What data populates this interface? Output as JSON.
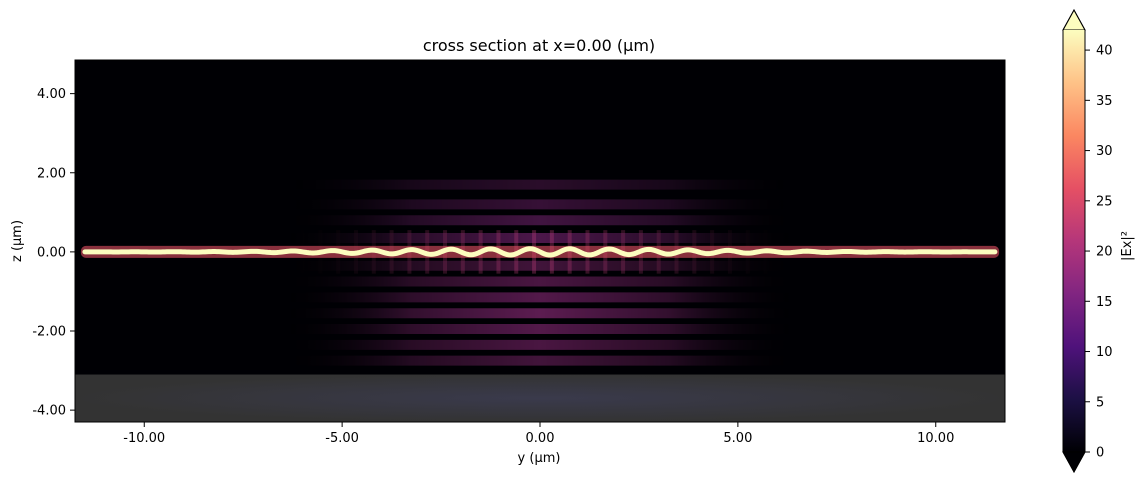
{
  "chart_data": {
    "type": "heatmap",
    "title": "cross section at x=0.00 (µm)",
    "xlabel": "y (µm)",
    "ylabel": "z (µm)",
    "xlim": [
      -11.75,
      11.75
    ],
    "ylim": [
      -4.3,
      4.85
    ],
    "x_ticks": [
      -10.0,
      -5.0,
      0.0,
      5.0,
      10.0
    ],
    "x_tick_labels": [
      "-10.00",
      "-5.00",
      "0.00",
      "5.00",
      "10.00"
    ],
    "y_ticks": [
      -4.0,
      -2.0,
      0.0,
      2.0,
      4.0
    ],
    "y_tick_labels": [
      "-4.00",
      "-2.00",
      "0.00",
      "2.00",
      "4.00"
    ],
    "colorbar": {
      "label": "|Ex|²",
      "vmin": 0,
      "vmax": 42,
      "ticks": [
        0,
        5,
        10,
        15,
        20,
        25,
        30,
        35,
        40
      ],
      "tick_labels": [
        "0",
        "5",
        "10",
        "15",
        "20",
        "25",
        "30",
        "35",
        "40"
      ],
      "extend": "both",
      "colormap": "magma"
    },
    "features": {
      "waveguide": {
        "z_center": 0.0,
        "y_range": [
          -11.5,
          11.5
        ],
        "value": 42
      },
      "beam_region": {
        "y_range": [
          -6.5,
          6.5
        ],
        "z_range": [
          -3.0,
          2.2
        ],
        "peak_value": 12
      },
      "substrate": {
        "z_range": [
          -4.3,
          -3.1
        ],
        "color": "#333333"
      }
    }
  }
}
